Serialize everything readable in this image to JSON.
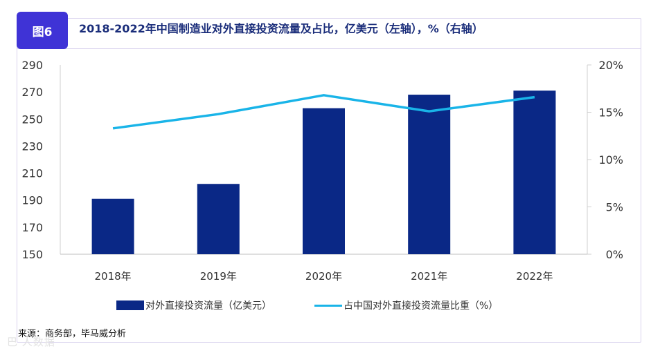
{
  "figure": {
    "badge": "图6",
    "title": "2018-2022年中国制造业对外直接投资流量及占比，亿美元（左轴），%（右轴）",
    "source": "来源：商务部，毕马威分析",
    "watermark": "巴 人数据"
  },
  "colors": {
    "bar": "#0a2886",
    "line": "#19b4e8",
    "title": "#1a2d7a",
    "badge": "#3f33d6"
  },
  "chart_data": {
    "type": "bar",
    "categories": [
      "2018年",
      "2019年",
      "2020年",
      "2021年",
      "2022年"
    ],
    "series": [
      {
        "name": "对外直接投资流量（亿美元）",
        "type": "bar",
        "axis": "left",
        "values": [
          191,
          202,
          258,
          268,
          271
        ]
      },
      {
        "name": "占中国对外直接投资流量比重（%）",
        "type": "line",
        "axis": "right",
        "values": [
          13.3,
          14.8,
          16.8,
          15.1,
          16.6
        ]
      }
    ],
    "ylim_left": [
      150,
      290
    ],
    "yticks_left": [
      "290",
      "270",
      "250",
      "230",
      "210",
      "190",
      "170",
      "150"
    ],
    "ylim_right": [
      0,
      20
    ],
    "yticks_right": [
      "20%",
      "15%",
      "10%",
      "5%",
      "0%"
    ],
    "grid": false,
    "legend_position": "bottom"
  }
}
